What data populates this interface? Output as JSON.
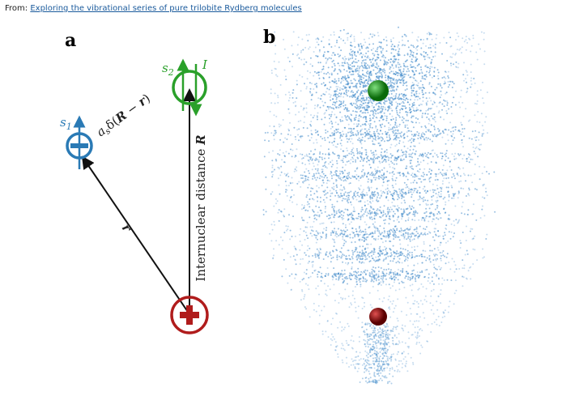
{
  "header": {
    "prefix": "From:",
    "link": "Exploring the vibrational series of pure trilobite Rydberg molecules"
  },
  "panel_a": {
    "label": "a",
    "s1": {
      "symbol": "s",
      "index": "1"
    },
    "s2": {
      "symbol": "s",
      "index": "2"
    },
    "spin": "I",
    "interaction": {
      "coef": "a",
      "coef_sub": "s",
      "open": "δ(",
      "R": "R",
      "minus": " − ",
      "r": "r",
      "close": ")"
    },
    "r_label": "r",
    "distance": {
      "text": "Internuclear distance ",
      "R": "R"
    }
  },
  "panel_b": {
    "label": "b"
  }
}
